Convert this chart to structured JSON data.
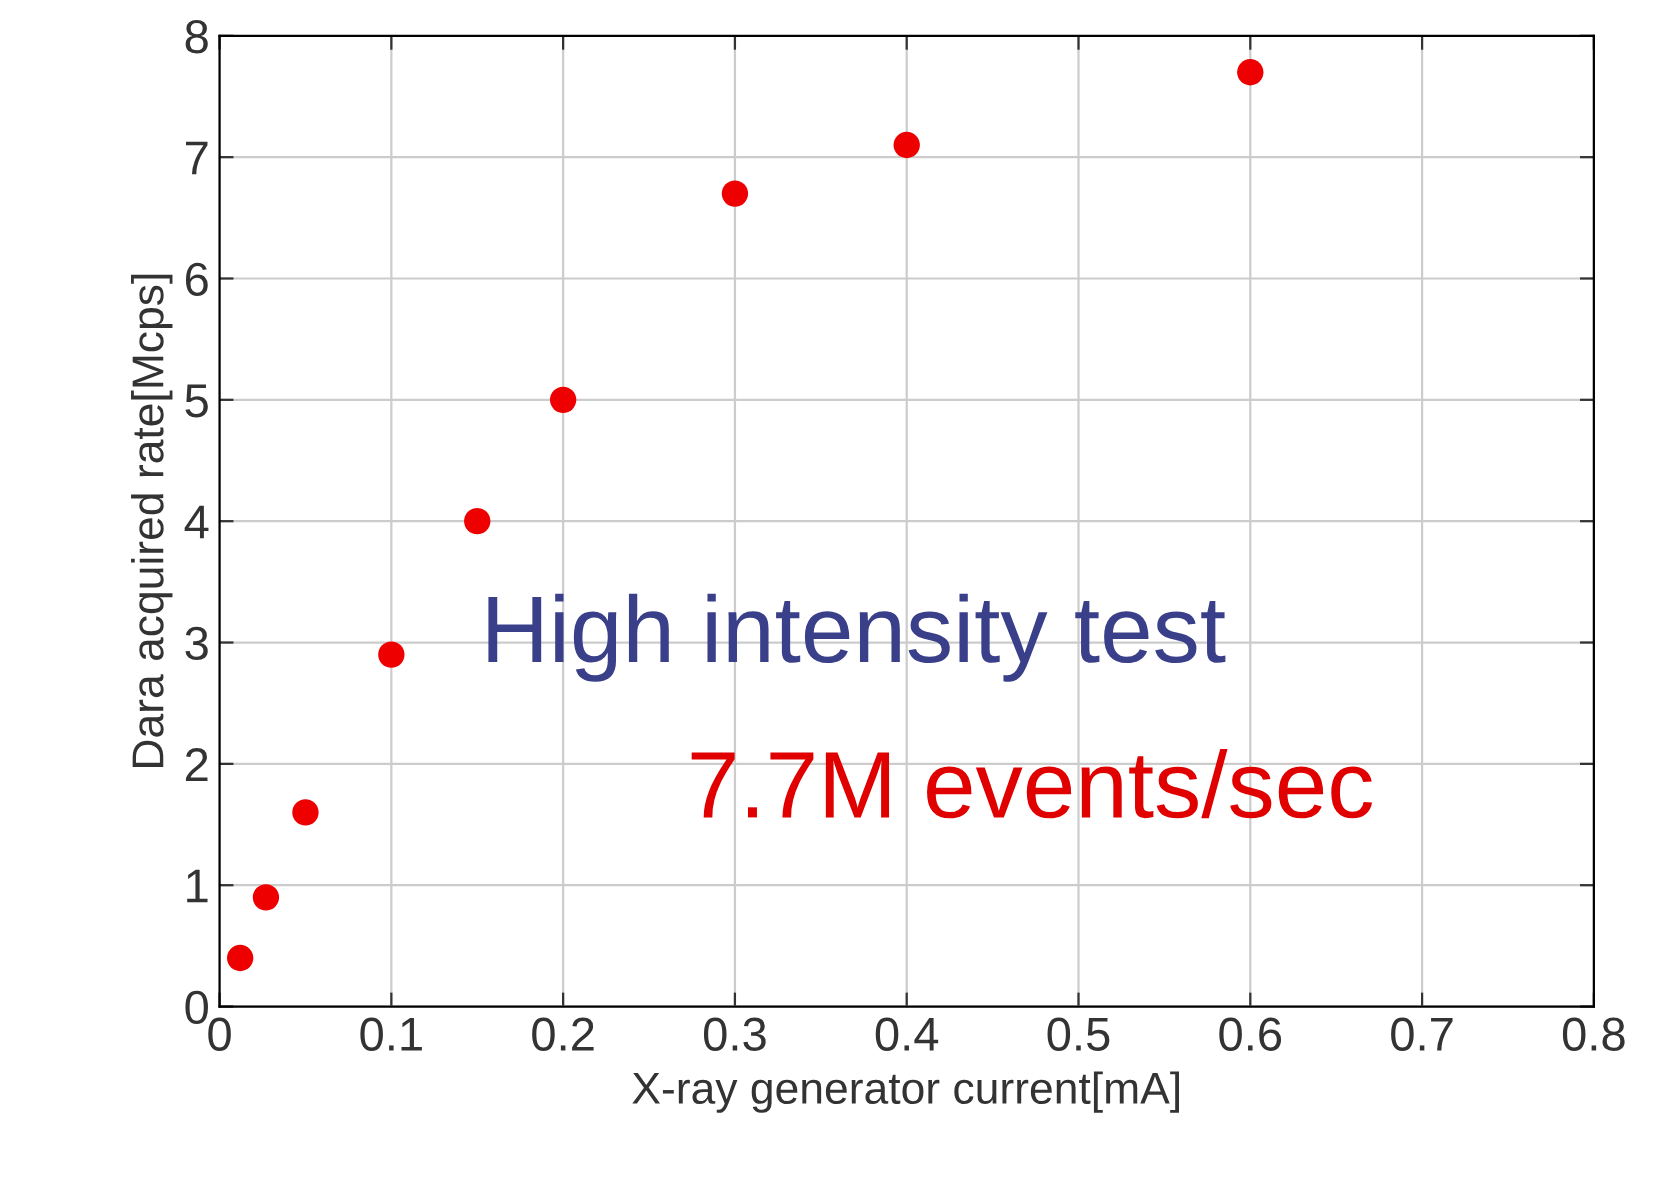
{
  "chart_data": {
    "type": "scatter",
    "xlabel": "X-ray generator current[mA]",
    "ylabel": "Dara acquired rate[Mcps]",
    "x": [
      0.012,
      0.027,
      0.05,
      0.1,
      0.15,
      0.2,
      0.3,
      0.4,
      0.6
    ],
    "series": [
      {
        "color": "#ee0000",
        "values": [
          0.4,
          0.9,
          1.6,
          2.9,
          4.0,
          5.0,
          6.7,
          7.1,
          7.7
        ]
      }
    ],
    "xlim": [
      0,
      0.8
    ],
    "xticks": [
      0,
      0.1,
      0.2,
      0.3,
      0.4,
      0.5,
      0.6,
      0.7,
      0.8
    ],
    "ylim": [
      0,
      8
    ],
    "yticks": [
      0,
      1,
      2,
      3,
      4,
      5,
      6,
      7,
      8
    ],
    "grid": true,
    "marker": "circle",
    "annotations": [
      "High intensity test",
      "7.7M events/sec"
    ]
  }
}
